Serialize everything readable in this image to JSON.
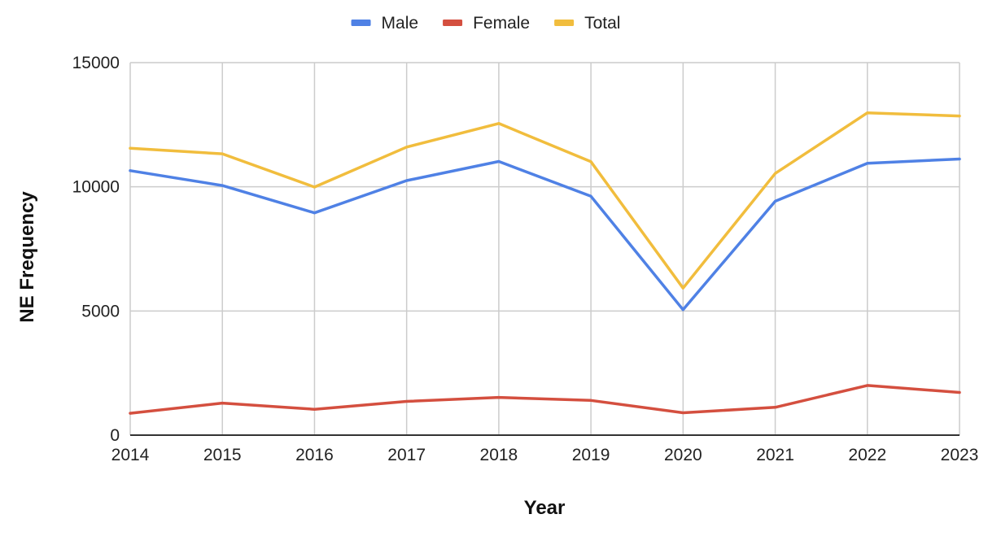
{
  "chart_data": {
    "type": "line",
    "title": "",
    "xlabel": "Year",
    "ylabel": "NE Frequency",
    "x": [
      "2014",
      "2015",
      "2016",
      "2017",
      "2018",
      "2019",
      "2020",
      "2021",
      "2022",
      "2023"
    ],
    "ylim": [
      0,
      15000
    ],
    "yticks": [
      "0",
      "5000",
      "10000",
      "15000"
    ],
    "grid": true,
    "legend_position": "top",
    "series": [
      {
        "name": "Male",
        "color": "#4f81e5",
        "values": [
          10650,
          10050,
          8950,
          10250,
          11020,
          9620,
          5050,
          9420,
          10950,
          11120
        ]
      },
      {
        "name": "Female",
        "color": "#d44f3f",
        "values": [
          880,
          1290,
          1040,
          1360,
          1520,
          1400,
          900,
          1120,
          2000,
          1720
        ]
      },
      {
        "name": "Total",
        "color": "#f1bd3d",
        "values": [
          11550,
          11330,
          9990,
          11600,
          12550,
          11010,
          5920,
          10540,
          12980,
          12850
        ]
      }
    ]
  }
}
